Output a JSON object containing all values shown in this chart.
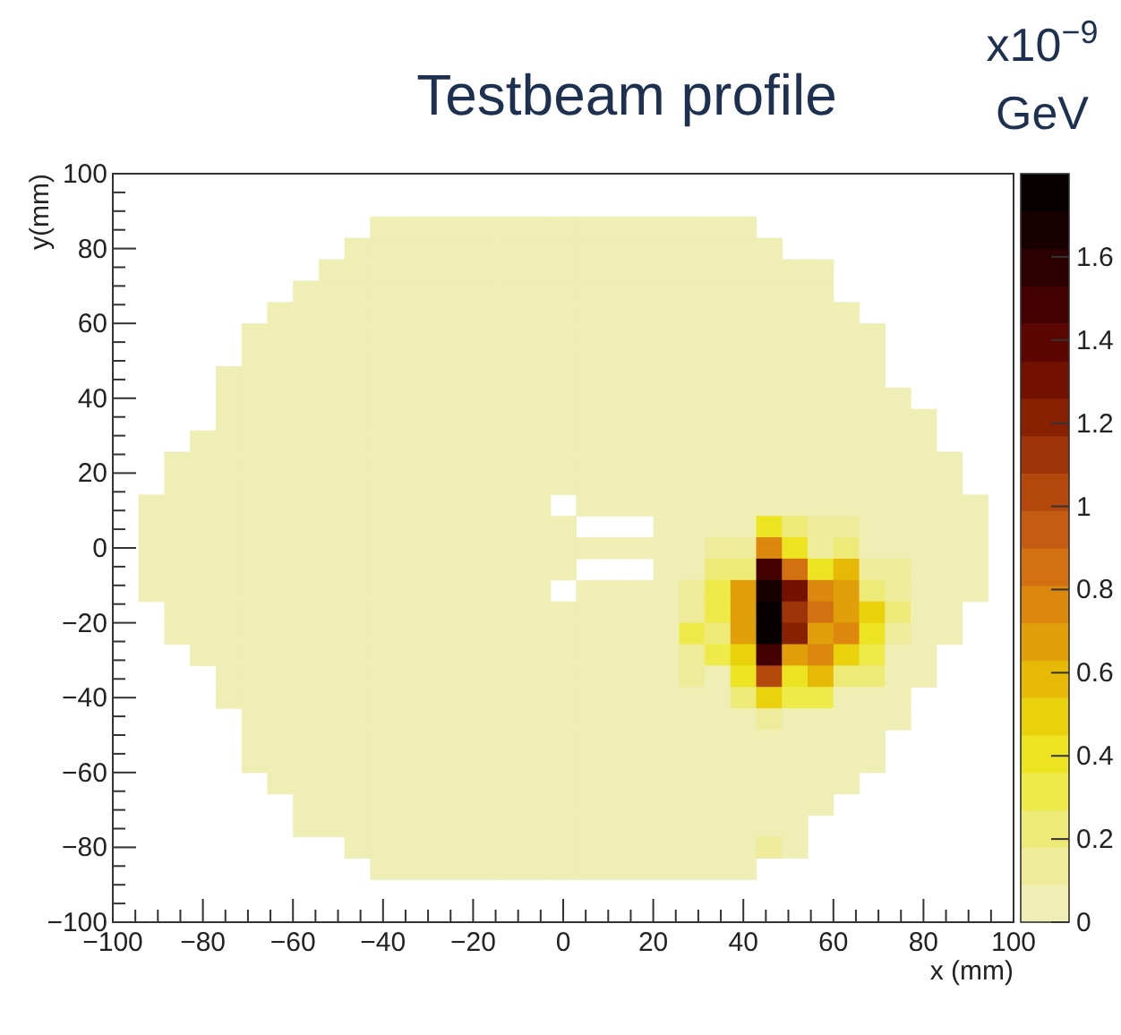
{
  "chart_data": {
    "type": "heatmap",
    "title": "Testbeam profile",
    "xlabel": "x (mm)",
    "ylabel": "y(mm)",
    "clabel": "x10$^{−9}$ GeV",
    "x": [
      -91.43,
      -85.71,
      -80,
      -74.29,
      -68.57,
      -62.86,
      -57.14,
      -51.43,
      -45.71,
      -40,
      -34.29,
      -28.57,
      -22.86,
      -17.14,
      -11.43,
      -5.71,
      0,
      5.71,
      11.43,
      17.14,
      22.86,
      28.57,
      34.29,
      40,
      45.71,
      51.43,
      57.14,
      62.86,
      68.57,
      74.29,
      80,
      85.71,
      91.43
    ],
    "y": [
      85.71,
      80,
      74.29,
      68.57,
      62.86,
      57.14,
      51.43,
      45.71,
      40,
      34.29,
      28.57,
      22.86,
      17.14,
      11.43,
      5.71,
      0,
      -5.71,
      -11.43,
      -17.14,
      -22.86,
      -28.57,
      -34.29,
      -40,
      -45.71,
      -51.43,
      -57.14,
      -62.86,
      -68.57,
      -74.29,
      -80,
      -85.71
    ],
    "xlim": [
      -100,
      100
    ],
    "ylim": [
      -100,
      100
    ],
    "xticks": [
      -100,
      {
        "value": -95,
        "label": null
      },
      {
        "value": -90,
        "label": null
      },
      {
        "value": -85,
        "label": null
      },
      -80,
      {
        "value": -75,
        "label": null
      },
      {
        "value": -70,
        "label": null
      },
      {
        "value": -65,
        "label": null
      },
      -60,
      {
        "value": -55,
        "label": null
      },
      {
        "value": -50,
        "label": null
      },
      {
        "value": -45,
        "label": null
      },
      -40,
      {
        "value": -35,
        "label": null
      },
      {
        "value": -30,
        "label": null
      },
      {
        "value": -25,
        "label": null
      },
      -20,
      {
        "value": -15,
        "label": null
      },
      {
        "value": -10,
        "label": null
      },
      {
        "value": -5,
        "label": null
      },
      0,
      {
        "value": 5,
        "label": null
      },
      {
        "value": 10,
        "label": null
      },
      {
        "value": 15,
        "label": null
      },
      20,
      {
        "value": 25,
        "label": null
      },
      {
        "value": 30,
        "label": null
      },
      {
        "value": 35,
        "label": null
      },
      40,
      {
        "value": 45,
        "label": null
      },
      {
        "value": 50,
        "label": null
      },
      {
        "value": 55,
        "label": null
      },
      60,
      {
        "value": 65,
        "label": null
      },
      {
        "value": 70,
        "label": null
      },
      {
        "value": 75,
        "label": null
      },
      80,
      {
        "value": 85,
        "label": null
      },
      {
        "value": 90,
        "label": null
      },
      {
        "value": 95,
        "label": null
      },
      100
    ],
    "yticks": [
      -100,
      {
        "value": -95,
        "label": null
      },
      {
        "value": -90,
        "label": null
      },
      {
        "value": -85,
        "label": null
      },
      -80,
      {
        "value": -75,
        "label": null
      },
      {
        "value": -70,
        "label": null
      },
      {
        "value": -65,
        "label": null
      },
      -60,
      {
        "value": -55,
        "label": null
      },
      {
        "value": -50,
        "label": null
      },
      {
        "value": -45,
        "label": null
      },
      -40,
      {
        "value": -35,
        "label": null
      },
      {
        "value": -30,
        "label": null
      },
      {
        "value": -25,
        "label": null
      },
      -20,
      {
        "value": -15,
        "label": null
      },
      {
        "value": -10,
        "label": null
      },
      {
        "value": -5,
        "label": null
      },
      0,
      {
        "value": 5,
        "label": null
      },
      {
        "value": 10,
        "label": null
      },
      {
        "value": 15,
        "label": null
      },
      20,
      {
        "value": 25,
        "label": null
      },
      {
        "value": 30,
        "label": null
      },
      {
        "value": 35,
        "label": null
      },
      40,
      {
        "value": 45,
        "label": null
      },
      {
        "value": 50,
        "label": null
      },
      {
        "value": 55,
        "label": null
      },
      60,
      {
        "value": 65,
        "label": null
      },
      {
        "value": 70,
        "label": null
      },
      {
        "value": 75,
        "label": null
      },
      80,
      {
        "value": 85,
        "label": null
      },
      {
        "value": 90,
        "label": null
      },
      {
        "value": 95,
        "label": null
      },
      100
    ],
    "clim": [
      0,
      1.8
    ],
    "cticks": [
      0,
      0.2,
      0.4,
      0.6,
      0.8,
      1,
      1.2,
      1.4,
      1.6
    ],
    "cells": [
      [
        null,
        null,
        null,
        null,
        null,
        null,
        null,
        null,
        null,
        0,
        0,
        0,
        0,
        0,
        0,
        0,
        0,
        0,
        0,
        0,
        0,
        0,
        0,
        0,
        null,
        null,
        null,
        null,
        null,
        null,
        null,
        null,
        null
      ],
      [
        null,
        null,
        null,
        null,
        null,
        null,
        null,
        null,
        0,
        0,
        0,
        0,
        0,
        0,
        0,
        0,
        0,
        0,
        0,
        0,
        0,
        0,
        0,
        0,
        0,
        null,
        null,
        null,
        null,
        null,
        null,
        null,
        null
      ],
      [
        null,
        null,
        null,
        null,
        null,
        null,
        null,
        0,
        0,
        0,
        0,
        0,
        0,
        0,
        0,
        0,
        0,
        0,
        0,
        0,
        0,
        0,
        0,
        0,
        0,
        0,
        0,
        null,
        null,
        null,
        null,
        null,
        null
      ],
      [
        null,
        null,
        null,
        null,
        null,
        null,
        0,
        0,
        0,
        0,
        0,
        0,
        0,
        0,
        0,
        0,
        0,
        0,
        0,
        0,
        0,
        0,
        0,
        0,
        0,
        0,
        0,
        null,
        null,
        null,
        null,
        null,
        null
      ],
      [
        null,
        null,
        null,
        null,
        null,
        0,
        0,
        0,
        0,
        0,
        0,
        0,
        0,
        0,
        0,
        0,
        0,
        0,
        0,
        0,
        0,
        0,
        0,
        0,
        0,
        0,
        0,
        0,
        null,
        null,
        null,
        null,
        null
      ],
      [
        null,
        null,
        null,
        null,
        0,
        0,
        0,
        0,
        0,
        0,
        0,
        0,
        0,
        0,
        0,
        0,
        0,
        0,
        0,
        0,
        0,
        0,
        0,
        0,
        0,
        0,
        0,
        0,
        0,
        null,
        null,
        null,
        null
      ],
      [
        null,
        null,
        null,
        null,
        0,
        0,
        0,
        0,
        0,
        0,
        0,
        0,
        0,
        0,
        0,
        0,
        0,
        0,
        0,
        0,
        0,
        0,
        0,
        0,
        0,
        0,
        0,
        0,
        0,
        null,
        null,
        null,
        null
      ],
      [
        null,
        null,
        null,
        0,
        0,
        0,
        0,
        0,
        0,
        0,
        0,
        0,
        0,
        0,
        0,
        0,
        0,
        0,
        0,
        0,
        0,
        0,
        0,
        0,
        0,
        0,
        0,
        0,
        0,
        null,
        null,
        null,
        null
      ],
      [
        null,
        null,
        null,
        0,
        0,
        0,
        0,
        0,
        0,
        0,
        0,
        0,
        0,
        0,
        0,
        0,
        0,
        0,
        0,
        0,
        0,
        0,
        0,
        0,
        0,
        0,
        0,
        0,
        0,
        0,
        null,
        null,
        null
      ],
      [
        null,
        null,
        null,
        0,
        0,
        0,
        0,
        0,
        0,
        0,
        0,
        0,
        0,
        0,
        0,
        0,
        0,
        0,
        0,
        0,
        0,
        0,
        0,
        0,
        0,
        0,
        0,
        0,
        0,
        0,
        0,
        null,
        null
      ],
      [
        null,
        null,
        0,
        0,
        0,
        0,
        0,
        0,
        0,
        0,
        0,
        0,
        0,
        0,
        0,
        0,
        0,
        0,
        0,
        0,
        0,
        0,
        0,
        0,
        0,
        0,
        0,
        0,
        0,
        0,
        0,
        null,
        null
      ],
      [
        null,
        0,
        0,
        0,
        0,
        0,
        0,
        0,
        0,
        0,
        0,
        0,
        0,
        0,
        0,
        0,
        0,
        0,
        0,
        0,
        0,
        0,
        0,
        0,
        0,
        0,
        0,
        0,
        0,
        0,
        0,
        0,
        null
      ],
      [
        null,
        0,
        0,
        0,
        0,
        0,
        0,
        0,
        0,
        0,
        0,
        0,
        0,
        0,
        0,
        0,
        0,
        0,
        0,
        0,
        0,
        0,
        0,
        0,
        0,
        0,
        0,
        0,
        0,
        0,
        0,
        0,
        null
      ],
      [
        0,
        0,
        0,
        0,
        0,
        0,
        0,
        0,
        0,
        0,
        0,
        0,
        0,
        0,
        0,
        0,
        null,
        0,
        0,
        0,
        0,
        0,
        0,
        0,
        0,
        0,
        0,
        0,
        0,
        0,
        0,
        0,
        0
      ],
      [
        0,
        0,
        0,
        0,
        0,
        0,
        0,
        0,
        0,
        0,
        0,
        0,
        0,
        0,
        0,
        0,
        0,
        null,
        null,
        null,
        0,
        0,
        0,
        0,
        0.4,
        0.25,
        0.15,
        0.15,
        0,
        0,
        0,
        0,
        0
      ],
      [
        0,
        0,
        0,
        0,
        0,
        0,
        0,
        0,
        0,
        0,
        0,
        0,
        0,
        0,
        0,
        0,
        0,
        0,
        0,
        0,
        0,
        0,
        0.15,
        0.15,
        0.8,
        0.4,
        0.15,
        0.25,
        0,
        0,
        0,
        0,
        0
      ],
      [
        0,
        0,
        0,
        0,
        0,
        0,
        0,
        0,
        0,
        0,
        0,
        0,
        0,
        0,
        0,
        0,
        0,
        null,
        null,
        null,
        0,
        0,
        0.2,
        0.25,
        1.5,
        0.85,
        0.4,
        0.55,
        0.15,
        0.15,
        0,
        0,
        0
      ],
      [
        0,
        0,
        0,
        0,
        0,
        0,
        0,
        0,
        0,
        0,
        0,
        0,
        0,
        0,
        0,
        0,
        null,
        0,
        0,
        0,
        0,
        0.15,
        0.3,
        0.65,
        1.65,
        1.3,
        0.75,
        0.65,
        0.25,
        0.15,
        0,
        0,
        0
      ],
      [
        null,
        0,
        0,
        0,
        0,
        0,
        0,
        0,
        0,
        0,
        0,
        0,
        0,
        0,
        0,
        0,
        0,
        0,
        0,
        0,
        0,
        0.15,
        0.3,
        0.65,
        1.75,
        1.1,
        0.85,
        0.65,
        0.5,
        0.25,
        0,
        0,
        null
      ],
      [
        null,
        0,
        0,
        0,
        0,
        0,
        0,
        0,
        0,
        0,
        0,
        0,
        0,
        0,
        0,
        0,
        0,
        0,
        0,
        0,
        0,
        0.3,
        0.25,
        0.65,
        1.75,
        1.2,
        0.65,
        0.8,
        0.4,
        0.15,
        0,
        0,
        null
      ],
      [
        null,
        null,
        0,
        0,
        0,
        0,
        0,
        0,
        0,
        0,
        0,
        0,
        0,
        0,
        0,
        0,
        0,
        0,
        0,
        0,
        0,
        0.15,
        0.3,
        0.5,
        1.45,
        0.65,
        0.8,
        0.5,
        0.35,
        0,
        0,
        null,
        null
      ],
      [
        null,
        null,
        null,
        0,
        0,
        0,
        0,
        0,
        0,
        0,
        0,
        0,
        0,
        0,
        0,
        0,
        0,
        0,
        0,
        0,
        0,
        0.15,
        0,
        0.4,
        1,
        0.4,
        0.6,
        0.2,
        0.2,
        0,
        0,
        null,
        null
      ],
      [
        null,
        null,
        null,
        0,
        0,
        0,
        0,
        0,
        0,
        0,
        0,
        0,
        0,
        0,
        0,
        0,
        0,
        0,
        0,
        0,
        0,
        0,
        0,
        0.2,
        0.5,
        0.3,
        0.3,
        0,
        0,
        0,
        null,
        null,
        null
      ],
      [
        null,
        null,
        null,
        null,
        0,
        0,
        0,
        0,
        0,
        0,
        0,
        0,
        0,
        0,
        0,
        0,
        0,
        0,
        0,
        0,
        0,
        0,
        0,
        0,
        0.15,
        0,
        0,
        0,
        0,
        0,
        null,
        null,
        null
      ],
      [
        null,
        null,
        null,
        null,
        0,
        0,
        0,
        0,
        0,
        0,
        0,
        0,
        0,
        0,
        0,
        0,
        0,
        0,
        0,
        0,
        0,
        0,
        0,
        0,
        0,
        0,
        0,
        0,
        0,
        null,
        null,
        null,
        null
      ],
      [
        null,
        null,
        null,
        null,
        0,
        0,
        0,
        0,
        0,
        0,
        0,
        0,
        0,
        0,
        0,
        0,
        0,
        0,
        0,
        0,
        0,
        0,
        0,
        0,
        0,
        0,
        0,
        0,
        0,
        null,
        null,
        null,
        null
      ],
      [
        null,
        null,
        null,
        null,
        null,
        0,
        0,
        0,
        0,
        0,
        0,
        0,
        0,
        0,
        0,
        0,
        0,
        0,
        0,
        0,
        0,
        0,
        0,
        0,
        0,
        0,
        0,
        0,
        null,
        null,
        null,
        null,
        null
      ],
      [
        null,
        null,
        null,
        null,
        null,
        null,
        0,
        0,
        0,
        0,
        0,
        0,
        0,
        0,
        0,
        0,
        0,
        0,
        0,
        0,
        0,
        0,
        0,
        0,
        0,
        0,
        0,
        null,
        null,
        null,
        null,
        null,
        null
      ],
      [
        null,
        null,
        null,
        null,
        null,
        null,
        0,
        0,
        0,
        0,
        0,
        0,
        0,
        0,
        0,
        0,
        0,
        0,
        0,
        0,
        0,
        0,
        0,
        0,
        0,
        0,
        null,
        null,
        null,
        null,
        null,
        null,
        null
      ],
      [
        null,
        null,
        null,
        null,
        null,
        null,
        null,
        null,
        0,
        0,
        0,
        0,
        0,
        0,
        0,
        0,
        0,
        0,
        0,
        0,
        0,
        0,
        0,
        0,
        0.15,
        0,
        null,
        null,
        null,
        null,
        null,
        null,
        null
      ],
      [
        null,
        null,
        null,
        null,
        null,
        null,
        null,
        null,
        null,
        0,
        0,
        0,
        0,
        0,
        0,
        0,
        0,
        0,
        0,
        0,
        0,
        0,
        0,
        0,
        null,
        null,
        null,
        null,
        null,
        null,
        null,
        null,
        null
      ]
    ]
  }
}
